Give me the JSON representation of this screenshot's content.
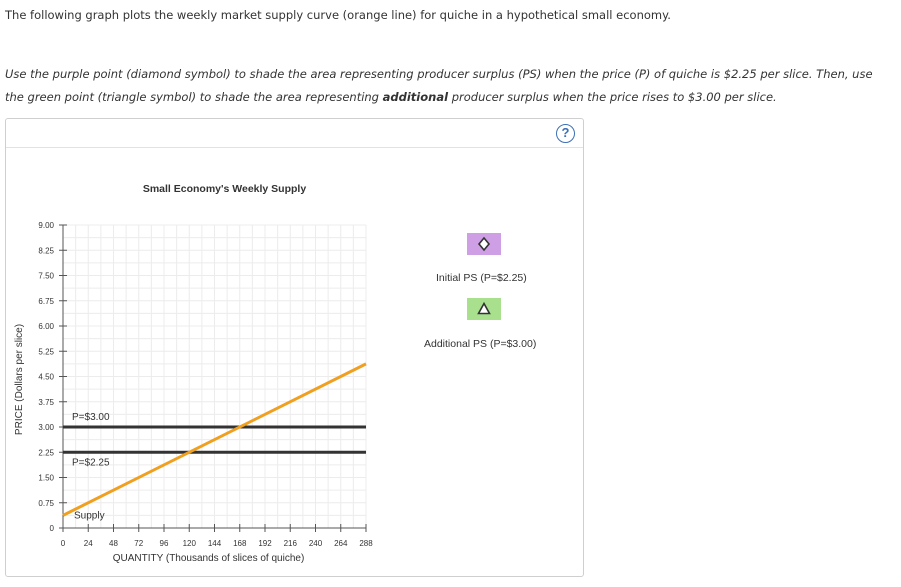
{
  "question": {
    "intro": "The following graph plots the weekly market supply curve (orange line) for quiche in a hypothetical small economy.",
    "instruction_part1": "Use the purple point (diamond symbol) to shade the area representing producer surplus (PS) when the price (P) of quiche is $2.25 per slice. Then, use the green point (triangle symbol) to shade the area representing ",
    "instruction_bold": "additional",
    "instruction_part2": " producer surplus when the price rises to $3.00 per slice."
  },
  "help": {
    "label": "?"
  },
  "legend": {
    "items": [
      {
        "label": "Initial PS (P=$2.25)",
        "symbol": "diamond",
        "color": "#cf9fe6"
      },
      {
        "label": "Additional PS (P=$3.00)",
        "symbol": "triangle",
        "color": "#a8e08e"
      }
    ]
  },
  "colors": {
    "supply": "#f0a020",
    "price_line": "#333333",
    "grid": "#ececec"
  },
  "chart_data": {
    "type": "line",
    "title": "Small Economy's Weekly Supply",
    "xlabel": "QUANTITY (Thousands of slices of quiche)",
    "ylabel": "PRICE (Dollars per slice)",
    "xlim": [
      0,
      288
    ],
    "ylim": [
      0,
      9
    ],
    "x_ticks": [
      "0",
      "24",
      "48",
      "72",
      "96",
      "120",
      "144",
      "168",
      "192",
      "216",
      "240",
      "264",
      "288"
    ],
    "y_ticks": [
      "0",
      "0.75",
      "1.50",
      "2.25",
      "3.00",
      "3.75",
      "4.50",
      "5.25",
      "6.00",
      "6.75",
      "7.50",
      "8.25",
      "9.00"
    ],
    "grid": true,
    "series": [
      {
        "name": "Supply",
        "x": [
          0,
          288
        ],
        "y": [
          0.375,
          4.875
        ]
      }
    ],
    "horizontal_lines": [
      {
        "label": "P=$3.00",
        "y": 3.0
      },
      {
        "label": "P=$2.25",
        "y": 2.25
      }
    ]
  }
}
